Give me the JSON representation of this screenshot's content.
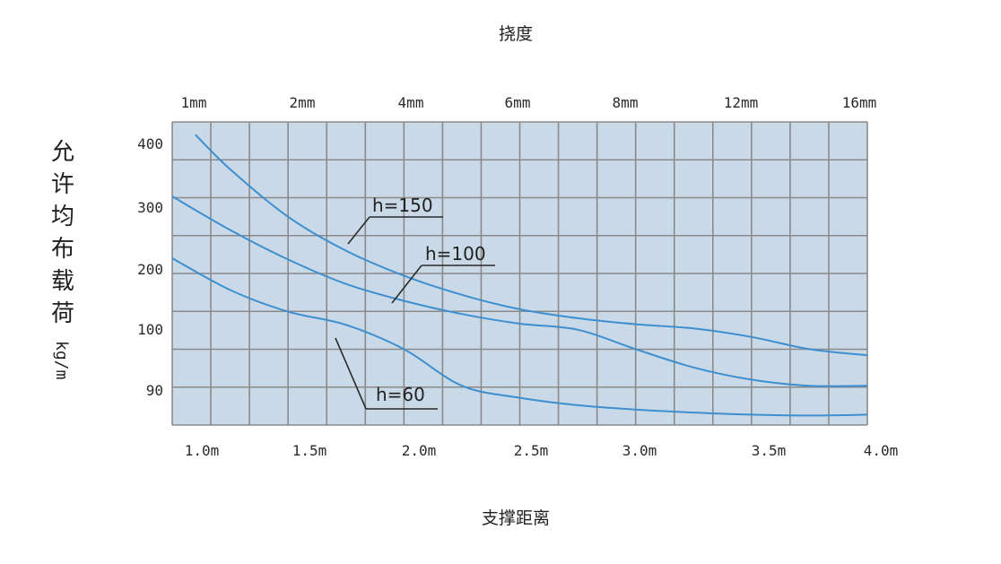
{
  "chart_data": {
    "type": "line",
    "title": "挠度",
    "xlabel": "支撑距离",
    "ylabel": "允许均布载荷",
    "ylabel_unit": "kg/m",
    "x_ticks": [
      "1.0m",
      "1.5m",
      "2.0m",
      "2.5m",
      "3.0m",
      "3.5m",
      "4.0m"
    ],
    "top_ticks": [
      "1mm",
      "2mm",
      "4mm",
      "6mm",
      "8mm",
      "12mm",
      "16mm"
    ],
    "y_ticks": [
      "400",
      "300",
      "200",
      "100",
      "90"
    ],
    "grid": true,
    "colors": {
      "plot_bg": "#c9d9e8",
      "grid": "#8a8a8a",
      "line": "#3d8fcf",
      "leader": "#2a2a2a"
    },
    "series": [
      {
        "name": "h=150",
        "x": [
          1.1,
          1.25,
          1.5,
          1.75,
          2.0,
          2.25,
          2.5,
          2.75,
          3.0,
          3.25,
          3.5,
          3.75,
          4.0
        ],
        "y": [
          414,
          360,
          286,
          232,
          192,
          160,
          136,
          121,
          111,
          104,
          99,
          97,
          96
        ]
      },
      {
        "name": "h=100",
        "x": [
          1.0,
          1.25,
          1.5,
          1.75,
          2.0,
          2.25,
          2.5,
          2.75,
          3.0,
          3.25,
          3.5,
          3.75,
          4.0
        ],
        "y": [
          318,
          265,
          218,
          178,
          150,
          128,
          112,
          102,
          97,
          94,
          92,
          91,
          91
        ]
      },
      {
        "name": "h=60",
        "x": [
          1.0,
          1.25,
          1.5,
          1.75,
          2.0,
          2.25,
          2.5,
          2.75,
          3.0,
          3.25,
          3.5,
          3.75,
          4.0
        ],
        "y": [
          220,
          168,
          132,
          110,
          97,
          91,
          88,
          85.5,
          84,
          83,
          82.3,
          82,
          82.3
        ]
      }
    ]
  }
}
